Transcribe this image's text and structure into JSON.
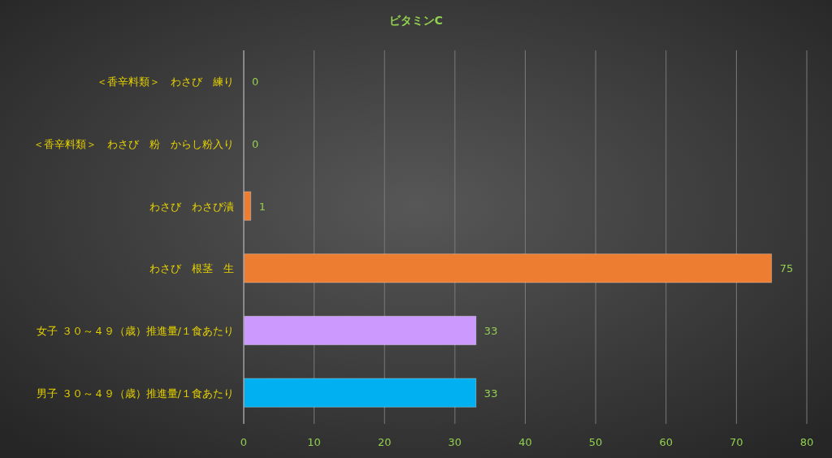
{
  "chart_data": {
    "type": "bar",
    "orientation": "horizontal",
    "title": "ビタミンC",
    "categories": [
      "＜香辛料類＞　わさび　練り",
      "＜香辛料類＞　わさび　粉　からし粉入り",
      "わさび　わさび漬",
      "わさび　根茎　生",
      "女子 ３０～４９（歳）推進量/１食あたり",
      "男子 ３０～４９（歳）推進量/１食あたり"
    ],
    "values": [
      0,
      0,
      1,
      75,
      33,
      33
    ],
    "colors": [
      "#ed7d31",
      "#ed7d31",
      "#ed7d31",
      "#ed7d31",
      "#cc99ff",
      "#00b0f0"
    ],
    "xlim": [
      0,
      80
    ],
    "xticks": [
      0,
      10,
      20,
      30,
      40,
      50,
      60,
      70,
      80
    ],
    "grid": "x",
    "data_labels": true
  }
}
